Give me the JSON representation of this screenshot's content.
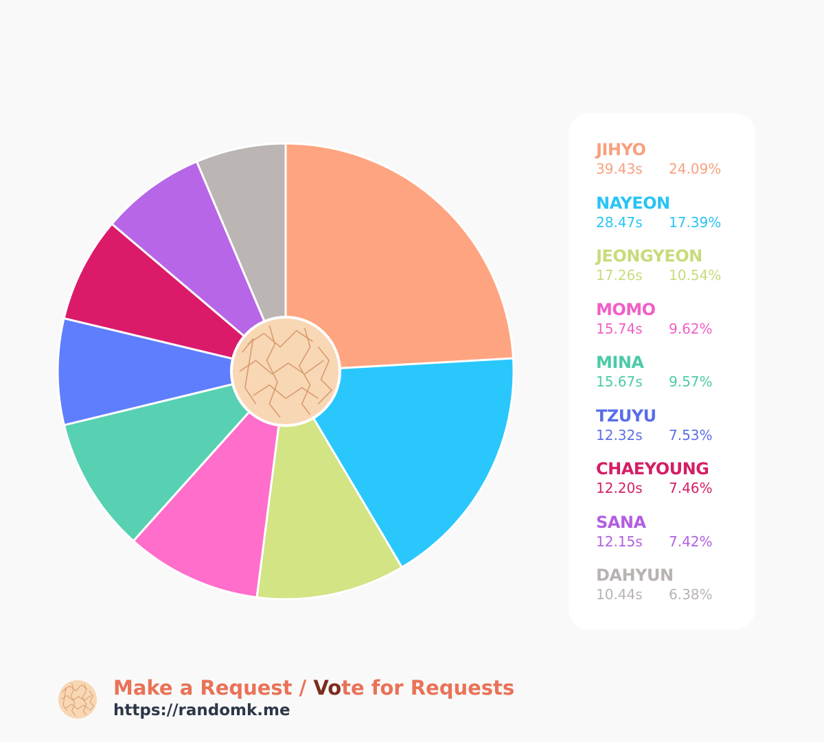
{
  "chart_data": {
    "type": "pie",
    "style": "donut-with-center-logo",
    "slices": [
      {
        "name": "JIHYO",
        "time": "39.43s",
        "percent_label": "24.09%",
        "percent": 24.09,
        "color": "#ffa480"
      },
      {
        "name": "NAYEON",
        "time": "28.47s",
        "percent_label": "17.39%",
        "percent": 17.39,
        "color": "#29c7fc"
      },
      {
        "name": "JEONGYEON",
        "time": "17.26s",
        "percent_label": "10.54%",
        "percent": 10.54,
        "color": "#d2e483"
      },
      {
        "name": "MOMO",
        "time": "15.74s",
        "percent_label": "9.62%",
        "percent": 9.62,
        "color": "#ff6ecb"
      },
      {
        "name": "MINA",
        "time": "15.67s",
        "percent_label": "9.57%",
        "percent": 9.57,
        "color": "#57d1b2"
      },
      {
        "name": "TZUYU",
        "time": "12.32s",
        "percent_label": "7.53%",
        "percent": 7.53,
        "color": "#5f7efe"
      },
      {
        "name": "CHAEYOUNG",
        "time": "12.20s",
        "percent_label": "7.46%",
        "percent": 7.46,
        "color": "#db1a6a"
      },
      {
        "name": "SANA",
        "time": "12.15s",
        "percent_label": "7.42%",
        "percent": 7.42,
        "color": "#b766e8"
      },
      {
        "name": "DAHYUN",
        "time": "10.44s",
        "percent_label": "6.38%",
        "percent": 6.38,
        "color": "#bbb6b4"
      }
    ],
    "legend_placement": "right",
    "legend_text_colors": [
      "#f8a07e",
      "#28c4f4",
      "#c6dc7c",
      "#f05fc4",
      "#4ccaa8",
      "#5a6ee8",
      "#d41e66",
      "#b25fe0",
      "#b8b3b2"
    ]
  },
  "footer": {
    "line1_prefix": "Make a Request / ",
    "line1_vo": "Vo",
    "line1_suffix": "te for Requests",
    "url": "https://randomk.me"
  },
  "logo": {
    "icon": "randomk-logo-icon",
    "fill": "#f8d7b5",
    "line_color": "#d99a6c"
  }
}
